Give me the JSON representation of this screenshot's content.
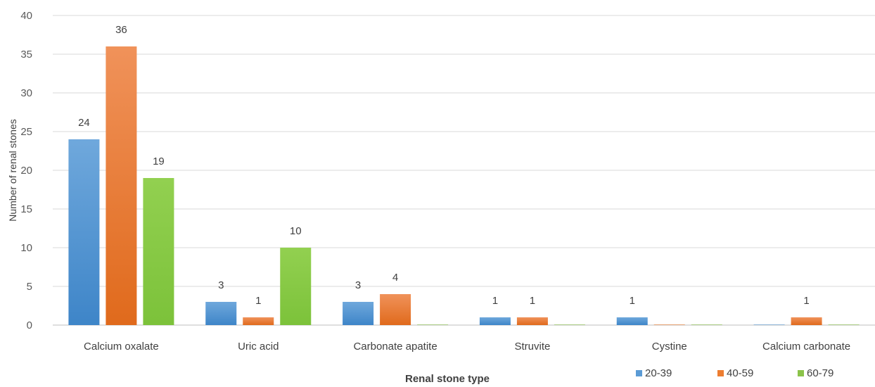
{
  "chart_data": {
    "type": "bar",
    "title": "",
    "xlabel": "Renal stone type",
    "ylabel": "Number of renal stones",
    "ylim": [
      0,
      40
    ],
    "yticks": [
      0,
      5,
      10,
      15,
      20,
      25,
      30,
      35,
      40
    ],
    "grid": true,
    "legend_position": "bottom-right",
    "categories": [
      "Calcium oxalate",
      "Uric acid",
      "Carbonate apatite",
      "Struvite",
      "Cystine",
      "Calcium carbonate"
    ],
    "series": [
      {
        "name": "20-39",
        "color": "#5B9BD5",
        "values": [
          24,
          3,
          3,
          1,
          1,
          0
        ]
      },
      {
        "name": "40-59",
        "color": "#ED7D31",
        "values": [
          36,
          1,
          4,
          1,
          0,
          1
        ]
      },
      {
        "name": "60-79",
        "color": "#8BC34A",
        "values": [
          19,
          10,
          0,
          0,
          0,
          0
        ]
      }
    ]
  }
}
